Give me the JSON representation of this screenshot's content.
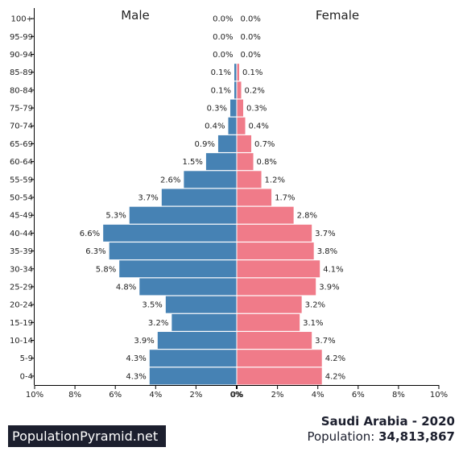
{
  "chart_data": {
    "type": "bar",
    "orientation": "horizontal-pyramid",
    "categories": [
      "0-4",
      "5-9",
      "10-14",
      "15-19",
      "20-24",
      "25-29",
      "30-34",
      "35-39",
      "40-44",
      "45-49",
      "50-54",
      "55-59",
      "60-64",
      "65-69",
      "70-74",
      "75-79",
      "80-84",
      "85-89",
      "90-94",
      "95-99",
      "100+"
    ],
    "series": [
      {
        "name": "Male",
        "values": [
          4.3,
          4.3,
          3.9,
          3.2,
          3.5,
          4.8,
          5.8,
          6.3,
          6.6,
          5.3,
          3.7,
          2.6,
          1.5,
          0.9,
          0.4,
          0.3,
          0.1,
          0.1,
          0.0,
          0.0,
          0.0
        ],
        "color": "#4682b4"
      },
      {
        "name": "Female",
        "values": [
          4.2,
          4.2,
          3.7,
          3.1,
          3.2,
          3.9,
          4.1,
          3.8,
          3.7,
          2.8,
          1.7,
          1.2,
          0.8,
          0.7,
          0.4,
          0.3,
          0.2,
          0.1,
          0.0,
          0.0,
          0.0
        ],
        "color": "#f07b89"
      }
    ],
    "value_labels": {
      "male": [
        "4.3%",
        "4.3%",
        "3.9%",
        "3.2%",
        "3.5%",
        "4.8%",
        "5.8%",
        "6.3%",
        "6.6%",
        "5.3%",
        "3.7%",
        "2.6%",
        "1.5%",
        "0.9%",
        "0.4%",
        "0.3%",
        "0.1%",
        "0.1%",
        "0.0%",
        "0.0%",
        "0.0%"
      ],
      "female": [
        "4.2%",
        "4.2%",
        "3.7%",
        "3.1%",
        "3.2%",
        "3.9%",
        "4.1%",
        "3.8%",
        "3.7%",
        "2.8%",
        "1.7%",
        "1.2%",
        "0.8%",
        "0.7%",
        "0.4%",
        "0.3%",
        "0.2%",
        "0.1%",
        "0.0%",
        "0.0%",
        "0.0%"
      ]
    },
    "xlim": [
      0,
      10
    ],
    "x_ticks_left": [
      "10%",
      "8%",
      "6%",
      "4%",
      "2%",
      "0%"
    ],
    "x_ticks_right": [
      "0%",
      "2%",
      "4%",
      "6%",
      "8%",
      "10%"
    ],
    "grid": false,
    "legend": "top"
  },
  "brand": "PopulationPyramid.net",
  "country_line": "Saudi Arabia - 2020",
  "population_label": "Population: ",
  "population_value": "34,813,867"
}
